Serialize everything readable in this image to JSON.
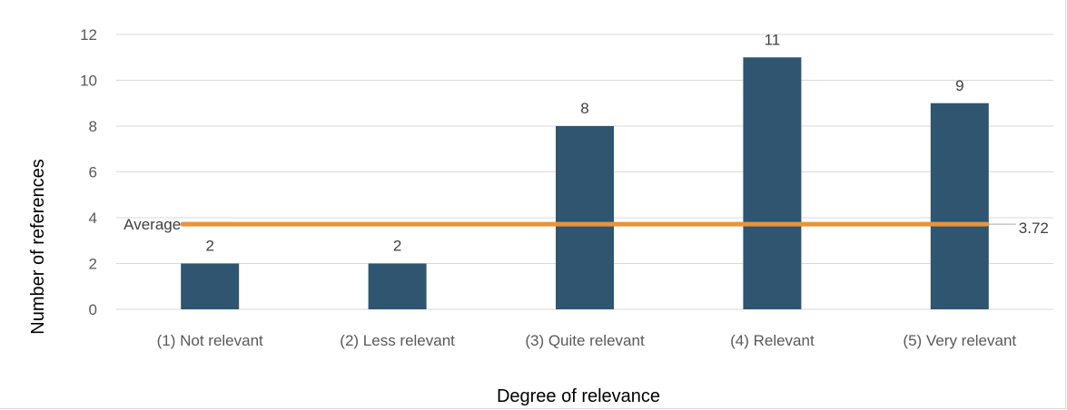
{
  "chart_data": {
    "type": "bar",
    "categories": [
      "(1) Not relevant",
      "(2) Less relevant",
      "(3) Quite relevant",
      "(4) Relevant",
      "(5) Very relevant"
    ],
    "values": [
      2,
      2,
      8,
      11,
      9
    ],
    "xlabel": "Degree of relevance",
    "ylabel": "Number of references",
    "ylim": [
      0,
      12
    ],
    "yticks": [
      0,
      2,
      4,
      6,
      8,
      10,
      12
    ],
    "grid": true,
    "average": {
      "label": "Average",
      "value": 3.72,
      "value_label": "3.72"
    },
    "colors": {
      "bar": "#2f5570",
      "average": "#e8943a",
      "grid": "#d9d9d9"
    }
  }
}
